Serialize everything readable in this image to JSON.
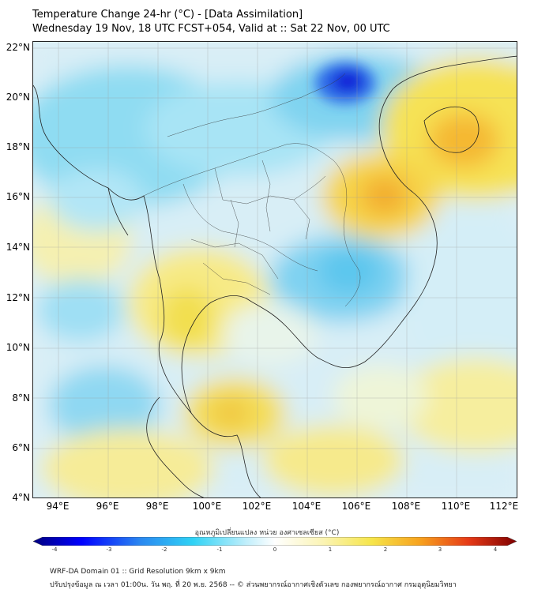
{
  "header": {
    "title": "Temperature Change 24-hr (°C) - [Data Assimilation]",
    "subtitle": "Wednesday 19 Nov, 18 UTC FCST+054, Valid at :: Sat 22 Nov, 00 UTC"
  },
  "map": {
    "lat_labels": [
      "22°N",
      "20°N",
      "18°N",
      "16°N",
      "14°N",
      "12°N",
      "10°N",
      "8°N",
      "6°N",
      "4°N"
    ],
    "lon_labels": [
      "94°E",
      "96°E",
      "98°E",
      "100°E",
      "102°E",
      "104°E",
      "106°E",
      "108°E",
      "110°E",
      "112°E"
    ]
  },
  "colorbar": {
    "label": "อุณหภูมิเปลี่ยนแปลง หน่วย องศาเซลเซียส (°C)",
    "ticks": [
      "-4",
      "-3",
      "-2",
      "-1",
      "0",
      "1",
      "2",
      "3",
      "4"
    ],
    "colors": [
      "#00007f",
      "#0000ff",
      "#2a86f0",
      "#2fd2f5",
      "#bfeefb",
      "#ffffff",
      "#fbf4b4",
      "#f6e54a",
      "#f7a21e",
      "#e63a17",
      "#7f0000"
    ]
  },
  "footer": {
    "line1": "WRF-DA Domain 01 :: Grid Resolution 9km x 9km",
    "line2": "ปรับปรุงข้อมูล ณ เวลา 01:00น. วัน พฤ. ที่ 20 พ.ย. 2568 -- © ส่วนพยากรณ์อากาศเชิงตัวเลข กองพยากรณ์อากาศ กรมอุตุนิยมวิทยา"
  }
}
